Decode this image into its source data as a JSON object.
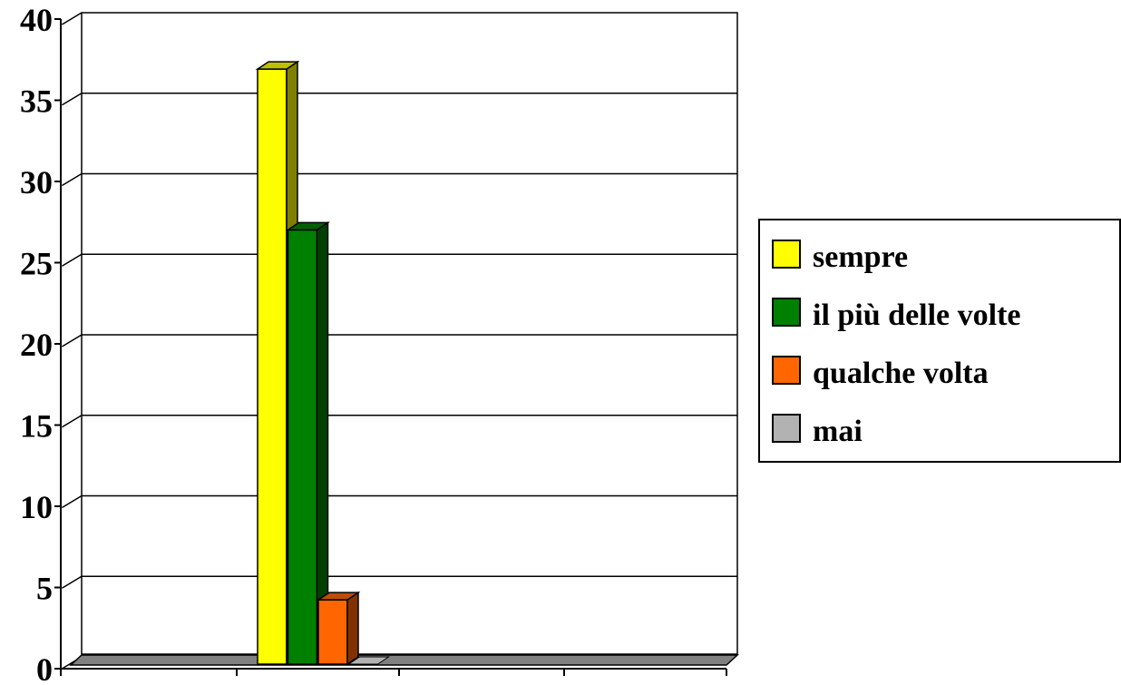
{
  "chart_data": {
    "type": "bar",
    "title": "",
    "xlabel": "",
    "ylabel": "",
    "ylim": [
      0,
      40
    ],
    "yticks": [
      "0",
      "5",
      "10",
      "15",
      "20",
      "25",
      "30",
      "35",
      "40"
    ],
    "grid": true,
    "legend_position": "right",
    "style": "3d-clustered-column",
    "categories": [
      ""
    ],
    "series": [
      {
        "name": "sempre",
        "values": [
          37
        ],
        "color": "#ffff00"
      },
      {
        "name": "il più delle volte",
        "values": [
          27
        ],
        "color": "#008000"
      },
      {
        "name": "qualche volta",
        "values": [
          4
        ],
        "color": "#ff6600"
      },
      {
        "name": "mai",
        "values": [
          0
        ],
        "color": "#b2b2b2"
      }
    ]
  }
}
